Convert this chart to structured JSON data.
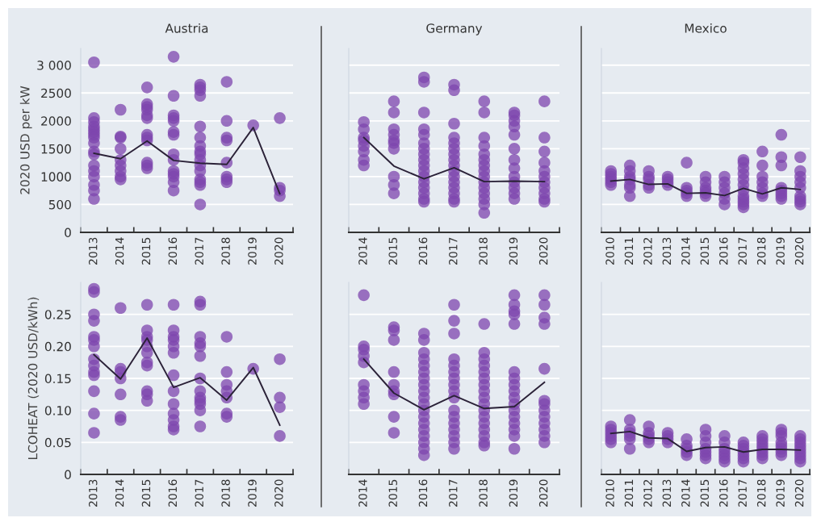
{
  "chart_data": [
    {
      "type": "scatter",
      "title": "Austria",
      "ylabel": "2020 USD per kW",
      "xlim": [
        2012.5,
        2020.5
      ],
      "xticks": [
        2013,
        2014,
        2015,
        2016,
        2017,
        2018,
        2019,
        2020
      ],
      "ylim": [
        0,
        3300
      ],
      "yticks": [
        0,
        500,
        1000,
        1500,
        2000,
        2500,
        {
          "value": 3000,
          "label": "3 000"
        }
      ],
      "grid": "y",
      "legend": false,
      "marker": "circle",
      "series": [
        {
          "color": "#7d45ae",
          "x": [
            2013,
            2013,
            2013,
            2013,
            2013,
            2013,
            2013,
            2013,
            2013,
            2013,
            2013,
            2013,
            2013,
            2013,
            2013,
            2013,
            2013,
            2014,
            2014,
            2014,
            2014,
            2014,
            2014,
            2014,
            2014,
            2014,
            2015,
            2015,
            2015,
            2015,
            2015,
            2015,
            2015,
            2015,
            2015,
            2015,
            2015,
            2015,
            2016,
            2016,
            2016,
            2016,
            2016,
            2016,
            2016,
            2016,
            2016,
            2016,
            2016,
            2016,
            2016,
            2016,
            2017,
            2017,
            2017,
            2017,
            2017,
            2017,
            2017,
            2017,
            2017,
            2017,
            2017,
            2017,
            2017,
            2017,
            2017,
            2017,
            2018,
            2018,
            2018,
            2018,
            2018,
            2018,
            2018,
            2018,
            2019,
            2020,
            2020,
            2020,
            2020
          ],
          "values": [
            3050,
            2050,
            1980,
            1900,
            1850,
            1800,
            1750,
            1700,
            1600,
            1450,
            1400,
            1200,
            1100,
            1000,
            850,
            750,
            600,
            2200,
            1720,
            1700,
            1500,
            1300,
            1200,
            1100,
            1000,
            950,
            2600,
            2300,
            2250,
            2200,
            2100,
            2050,
            1750,
            1700,
            1650,
            1250,
            1200,
            1150,
            3150,
            2450,
            2100,
            2050,
            2000,
            1800,
            1750,
            1400,
            1300,
            1100,
            1050,
            1000,
            900,
            750,
            2650,
            2600,
            2550,
            2450,
            1900,
            1700,
            1550,
            1450,
            1400,
            1300,
            1200,
            1100,
            950,
            900,
            850,
            500,
            2700,
            2000,
            1700,
            1650,
            1250,
            1000,
            950,
            900,
            1920,
            2050,
            800,
            750,
            650
          ]
        },
        {
          "type": "line",
          "color": "#2b2238",
          "marker": "none",
          "x": [
            2013,
            2014,
            2015,
            2016,
            2017,
            2018,
            2019,
            2020
          ],
          "values": [
            1420,
            1320,
            1640,
            1290,
            1240,
            1220,
            1880,
            690
          ]
        }
      ]
    },
    {
      "type": "scatter",
      "title": "Germany",
      "xlim": [
        2013.5,
        2020.5
      ],
      "xticks": [
        2014,
        2015,
        2016,
        2017,
        2018,
        2019,
        2020
      ],
      "ylim": [
        0,
        3300
      ],
      "yticks": [
        {
          "value": 0,
          "label": null
        },
        {
          "value": 500,
          "label": null
        },
        {
          "value": 1000,
          "label": null
        },
        {
          "value": 1500,
          "label": null
        },
        {
          "value": 2000,
          "label": null
        },
        {
          "value": 2500,
          "label": null
        },
        {
          "value": 3000,
          "label": null
        }
      ],
      "grid": "y",
      "legend": false,
      "marker": "circle",
      "tick_labels": "x",
      "series": [
        {
          "color": "#7d45ae",
          "x": [
            2014,
            2014,
            2014,
            2014,
            2014,
            2014,
            2014,
            2014,
            2015,
            2015,
            2015,
            2015,
            2015,
            2015,
            2015,
            2015,
            2015,
            2015,
            2016,
            2016,
            2016,
            2016,
            2016,
            2016,
            2016,
            2016,
            2016,
            2016,
            2016,
            2016,
            2016,
            2016,
            2016,
            2016,
            2016,
            2017,
            2017,
            2017,
            2017,
            2017,
            2017,
            2017,
            2017,
            2017,
            2017,
            2017,
            2017,
            2017,
            2017,
            2017,
            2017,
            2018,
            2018,
            2018,
            2018,
            2018,
            2018,
            2018,
            2018,
            2018,
            2018,
            2018,
            2018,
            2018,
            2018,
            2018,
            2019,
            2019,
            2019,
            2019,
            2019,
            2019,
            2019,
            2019,
            2019,
            2019,
            2019,
            2019,
            2019,
            2020,
            2020,
            2020,
            2020,
            2020,
            2020,
            2020,
            2020,
            2020,
            2020,
            2020
          ],
          "values": [
            1980,
            1850,
            1700,
            1650,
            1550,
            1450,
            1300,
            1200,
            2350,
            2150,
            1850,
            1750,
            1650,
            1600,
            1500,
            1000,
            850,
            700,
            2780,
            2700,
            2150,
            1850,
            1750,
            1600,
            1500,
            1400,
            1300,
            1200,
            1100,
            1000,
            900,
            800,
            700,
            600,
            550,
            2650,
            2550,
            1950,
            1700,
            1600,
            1500,
            1400,
            1300,
            1200,
            1100,
            1000,
            900,
            800,
            700,
            600,
            550,
            2350,
            2150,
            1700,
            1550,
            1400,
            1300,
            1200,
            1100,
            1000,
            900,
            800,
            700,
            600,
            500,
            350,
            2150,
            2100,
            2000,
            1900,
            1750,
            1500,
            1300,
            1150,
            1000,
            900,
            800,
            700,
            600,
            2350,
            1700,
            1450,
            1250,
            1100,
            1000,
            900,
            800,
            700,
            600,
            550
          ]
        },
        {
          "type": "line",
          "color": "#2b2238",
          "marker": "none",
          "x": [
            2014,
            2015,
            2016,
            2017,
            2018,
            2019,
            2020
          ],
          "values": [
            1700,
            1190,
            960,
            1160,
            910,
            920,
            910
          ]
        }
      ]
    },
    {
      "type": "scatter",
      "title": "Mexico",
      "xlim": [
        2009.5,
        2020.5
      ],
      "xticks": [
        2010,
        2011,
        2012,
        2013,
        2014,
        2015,
        2016,
        2017,
        2018,
        2019,
        2020
      ],
      "ylim": [
        0,
        3300
      ],
      "yticks": [
        {
          "value": 0,
          "label": null
        },
        {
          "value": 500,
          "label": null
        },
        {
          "value": 1000,
          "label": null
        },
        {
          "value": 1500,
          "label": null
        },
        {
          "value": 2000,
          "label": null
        },
        {
          "value": 2500,
          "label": null
        },
        {
          "value": 3000,
          "label": null
        }
      ],
      "grid": "y",
      "legend": false,
      "marker": "circle",
      "tick_labels": "x",
      "series": [
        {
          "color": "#7d45ae",
          "x": [
            2010,
            2010,
            2010,
            2010,
            2010,
            2010,
            2011,
            2011,
            2011,
            2011,
            2011,
            2011,
            2011,
            2012,
            2012,
            2012,
            2012,
            2012,
            2013,
            2013,
            2013,
            2013,
            2014,
            2014,
            2014,
            2014,
            2014,
            2015,
            2015,
            2015,
            2015,
            2015,
            2015,
            2016,
            2016,
            2016,
            2016,
            2016,
            2016,
            2017,
            2017,
            2017,
            2017,
            2017,
            2017,
            2017,
            2017,
            2017,
            2017,
            2017,
            2017,
            2018,
            2018,
            2018,
            2018,
            2018,
            2018,
            2018,
            2019,
            2019,
            2019,
            2019,
            2019,
            2019,
            2019,
            2019,
            2020,
            2020,
            2020,
            2020,
            2020,
            2020,
            2020,
            2020,
            2020
          ],
          "values": [
            1100,
            1050,
            1000,
            950,
            900,
            850,
            1200,
            1100,
            1000,
            950,
            850,
            800,
            650,
            1100,
            1000,
            950,
            850,
            800,
            1000,
            950,
            900,
            850,
            1250,
            800,
            750,
            700,
            650,
            1000,
            900,
            800,
            750,
            700,
            650,
            1000,
            900,
            800,
            700,
            600,
            500,
            1300,
            1250,
            1150,
            1050,
            950,
            850,
            750,
            650,
            600,
            550,
            500,
            450,
            1450,
            1200,
            1000,
            900,
            800,
            700,
            650,
            1750,
            1350,
            1200,
            800,
            750,
            700,
            650,
            600,
            1350,
            1100,
            1000,
            900,
            800,
            650,
            600,
            550,
            500
          ]
        },
        {
          "type": "line",
          "color": "#2b2238",
          "marker": "none",
          "x": [
            2010,
            2011,
            2012,
            2013,
            2014,
            2015,
            2016,
            2017,
            2018,
            2019,
            2020
          ],
          "values": [
            920,
            950,
            860,
            870,
            700,
            710,
            660,
            790,
            690,
            800,
            770
          ]
        }
      ]
    },
    {
      "type": "scatter",
      "ylabel": "LCOHEAT (2020 USD/kWh)",
      "xlim": [
        2012.5,
        2020.5
      ],
      "xticks": [
        2013,
        2014,
        2015,
        2016,
        2017,
        2018,
        2019,
        2020
      ],
      "ylim": [
        0,
        0.3
      ],
      "yticks": [
        0,
        {
          "value": 0.05,
          "label": "0.05"
        },
        {
          "value": 0.1,
          "label": "0.10"
        },
        {
          "value": 0.15,
          "label": "0.15"
        },
        {
          "value": 0.2,
          "label": "0.20"
        },
        {
          "value": 0.25,
          "label": "0.25"
        }
      ],
      "grid": "y",
      "legend": false,
      "marker": "circle",
      "series": [
        {
          "color": "#7d45ae",
          "x": [
            2013,
            2013,
            2013,
            2013,
            2013,
            2013,
            2013,
            2013,
            2013,
            2013,
            2013,
            2013,
            2013,
            2013,
            2014,
            2014,
            2014,
            2014,
            2014,
            2014,
            2014,
            2015,
            2015,
            2015,
            2015,
            2015,
            2015,
            2015,
            2015,
            2015,
            2015,
            2015,
            2016,
            2016,
            2016,
            2016,
            2016,
            2016,
            2016,
            2016,
            2016,
            2016,
            2016,
            2016,
            2016,
            2017,
            2017,
            2017,
            2017,
            2017,
            2017,
            2017,
            2017,
            2017,
            2017,
            2017,
            2017,
            2017,
            2018,
            2018,
            2018,
            2018,
            2018,
            2018,
            2018,
            2019,
            2020,
            2020,
            2020,
            2020
          ],
          "values": [
            0.29,
            0.285,
            0.25,
            0.24,
            0.215,
            0.21,
            0.2,
            0.18,
            0.17,
            0.16,
            0.155,
            0.13,
            0.095,
            0.065,
            0.26,
            0.165,
            0.16,
            0.15,
            0.125,
            0.09,
            0.085,
            0.265,
            0.225,
            0.215,
            0.21,
            0.2,
            0.19,
            0.175,
            0.17,
            0.13,
            0.125,
            0.115,
            0.265,
            0.225,
            0.215,
            0.21,
            0.2,
            0.19,
            0.155,
            0.13,
            0.11,
            0.095,
            0.085,
            0.075,
            0.07,
            0.27,
            0.265,
            0.215,
            0.205,
            0.2,
            0.185,
            0.15,
            0.13,
            0.12,
            0.115,
            0.11,
            0.1,
            0.075,
            0.215,
            0.16,
            0.14,
            0.13,
            0.12,
            0.095,
            0.09,
            0.165,
            0.18,
            0.12,
            0.105,
            0.06
          ]
        },
        {
          "type": "line",
          "color": "#2b2238",
          "marker": "none",
          "x": [
            2013,
            2014,
            2015,
            2016,
            2017,
            2018,
            2019,
            2020
          ],
          "values": [
            0.187,
            0.149,
            0.213,
            0.136,
            0.151,
            0.116,
            0.167,
            0.077
          ]
        }
      ]
    },
    {
      "type": "scatter",
      "xlim": [
        2013.5,
        2020.5
      ],
      "xticks": [
        2014,
        2015,
        2016,
        2017,
        2018,
        2019,
        2020
      ],
      "ylim": [
        0,
        0.3
      ],
      "yticks": [
        {
          "value": 0,
          "label": null
        },
        {
          "value": 0.05,
          "label": null
        },
        {
          "value": 0.1,
          "label": null
        },
        {
          "value": 0.15,
          "label": null
        },
        {
          "value": 0.2,
          "label": null
        },
        {
          "value": 0.25,
          "label": null
        }
      ],
      "grid": "y",
      "legend": false,
      "marker": "circle",
      "tick_labels": "x",
      "series": [
        {
          "color": "#7d45ae",
          "x": [
            2014,
            2014,
            2014,
            2014,
            2014,
            2014,
            2014,
            2014,
            2014,
            2015,
            2015,
            2015,
            2015,
            2015,
            2015,
            2015,
            2015,
            2015,
            2016,
            2016,
            2016,
            2016,
            2016,
            2016,
            2016,
            2016,
            2016,
            2016,
            2016,
            2016,
            2016,
            2016,
            2016,
            2016,
            2016,
            2016,
            2016,
            2017,
            2017,
            2017,
            2017,
            2017,
            2017,
            2017,
            2017,
            2017,
            2017,
            2017,
            2017,
            2017,
            2017,
            2017,
            2017,
            2017,
            2018,
            2018,
            2018,
            2018,
            2018,
            2018,
            2018,
            2018,
            2018,
            2018,
            2018,
            2018,
            2018,
            2018,
            2018,
            2018,
            2018,
            2019,
            2019,
            2019,
            2019,
            2019,
            2019,
            2019,
            2019,
            2019,
            2019,
            2019,
            2019,
            2019,
            2019,
            2019,
            2019,
            2019,
            2020,
            2020,
            2020,
            2020,
            2020,
            2020,
            2020,
            2020,
            2020,
            2020,
            2020,
            2020,
            2020
          ],
          "values": [
            0.28,
            0.2,
            0.195,
            0.185,
            0.175,
            0.14,
            0.13,
            0.12,
            0.11,
            0.23,
            0.225,
            0.21,
            0.16,
            0.14,
            0.13,
            0.125,
            0.09,
            0.065,
            0.22,
            0.21,
            0.19,
            0.18,
            0.17,
            0.16,
            0.15,
            0.14,
            0.13,
            0.12,
            0.11,
            0.1,
            0.09,
            0.08,
            0.07,
            0.06,
            0.05,
            0.04,
            0.03,
            0.265,
            0.24,
            0.22,
            0.18,
            0.17,
            0.16,
            0.15,
            0.14,
            0.13,
            0.12,
            0.1,
            0.09,
            0.08,
            0.07,
            0.06,
            0.05,
            0.04,
            0.235,
            0.19,
            0.18,
            0.17,
            0.16,
            0.15,
            0.14,
            0.13,
            0.12,
            0.11,
            0.1,
            0.09,
            0.08,
            0.07,
            0.06,
            0.05,
            0.045,
            0.28,
            0.265,
            0.255,
            0.25,
            0.235,
            0.16,
            0.15,
            0.14,
            0.13,
            0.12,
            0.11,
            0.1,
            0.09,
            0.08,
            0.07,
            0.06,
            0.04,
            0.28,
            0.265,
            0.245,
            0.235,
            0.165,
            0.115,
            0.11,
            0.1,
            0.09,
            0.08,
            0.07,
            0.06,
            0.05
          ]
        },
        {
          "type": "line",
          "color": "#2b2238",
          "marker": "none",
          "x": [
            2014,
            2015,
            2016,
            2017,
            2018,
            2019,
            2020
          ],
          "values": [
            0.18,
            0.127,
            0.101,
            0.123,
            0.103,
            0.106,
            0.144
          ]
        }
      ]
    },
    {
      "type": "scatter",
      "xlim": [
        2009.5,
        2020.5
      ],
      "xticks": [
        2010,
        2011,
        2012,
        2013,
        2014,
        2015,
        2016,
        2017,
        2018,
        2019,
        2020
      ],
      "ylim": [
        0,
        0.3
      ],
      "yticks": [
        {
          "value": 0,
          "label": null
        },
        {
          "value": 0.05,
          "label": null
        },
        {
          "value": 0.1,
          "label": null
        },
        {
          "value": 0.15,
          "label": null
        },
        {
          "value": 0.2,
          "label": null
        },
        {
          "value": 0.25,
          "label": null
        }
      ],
      "grid": "y",
      "legend": false,
      "marker": "circle",
      "tick_labels": "x",
      "series": [
        {
          "color": "#7d45ae",
          "x": [
            2010,
            2010,
            2010,
            2010,
            2010,
            2010,
            2011,
            2011,
            2011,
            2011,
            2011,
            2011,
            2012,
            2012,
            2012,
            2012,
            2012,
            2013,
            2013,
            2013,
            2013,
            2014,
            2014,
            2014,
            2014,
            2014,
            2015,
            2015,
            2015,
            2015,
            2015,
            2015,
            2015,
            2016,
            2016,
            2016,
            2016,
            2016,
            2016,
            2016,
            2017,
            2017,
            2017,
            2017,
            2017,
            2017,
            2017,
            2018,
            2018,
            2018,
            2018,
            2018,
            2018,
            2018,
            2018,
            2019,
            2019,
            2019,
            2019,
            2019,
            2019,
            2019,
            2019,
            2020,
            2020,
            2020,
            2020,
            2020,
            2020,
            2020,
            2020,
            2020
          ],
          "values": [
            0.075,
            0.07,
            0.065,
            0.06,
            0.055,
            0.05,
            0.085,
            0.07,
            0.065,
            0.06,
            0.055,
            0.04,
            0.075,
            0.065,
            0.06,
            0.055,
            0.05,
            0.065,
            0.06,
            0.055,
            0.05,
            0.055,
            0.045,
            0.04,
            0.035,
            0.03,
            0.07,
            0.06,
            0.05,
            0.04,
            0.035,
            0.03,
            0.025,
            0.06,
            0.05,
            0.04,
            0.035,
            0.03,
            0.025,
            0.02,
            0.05,
            0.045,
            0.04,
            0.035,
            0.03,
            0.025,
            0.02,
            0.06,
            0.055,
            0.05,
            0.045,
            0.04,
            0.035,
            0.03,
            0.025,
            0.07,
            0.065,
            0.06,
            0.05,
            0.045,
            0.04,
            0.035,
            0.03,
            0.06,
            0.055,
            0.05,
            0.045,
            0.04,
            0.035,
            0.03,
            0.025,
            0.02
          ]
        },
        {
          "type": "line",
          "color": "#2b2238",
          "marker": "none",
          "x": [
            2010,
            2011,
            2012,
            2013,
            2014,
            2015,
            2016,
            2017,
            2018,
            2019,
            2020
          ],
          "values": [
            0.064,
            0.067,
            0.057,
            0.056,
            0.036,
            0.042,
            0.043,
            0.035,
            0.039,
            0.039,
            0.038
          ]
        }
      ]
    }
  ]
}
